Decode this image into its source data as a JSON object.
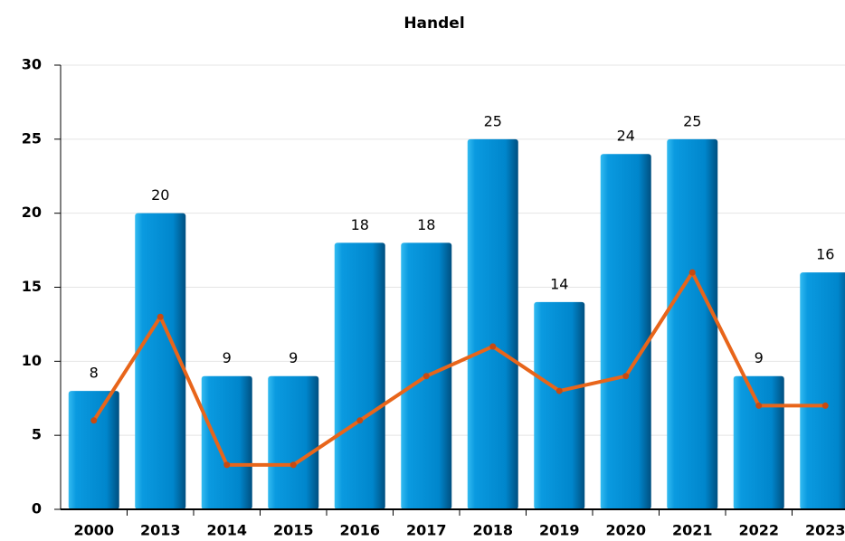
{
  "chart_data": {
    "type": "bar",
    "title": "Handel",
    "categories": [
      "2000",
      "2013",
      "2014",
      "2015",
      "2016",
      "2017",
      "2018",
      "2019",
      "2020",
      "2021",
      "2022",
      "2023"
    ],
    "series": [
      {
        "type": "bar",
        "color": "#0088cc",
        "values": [
          8,
          20,
          9,
          9,
          18,
          18,
          25,
          14,
          24,
          25,
          9,
          16
        ]
      },
      {
        "type": "line",
        "color": "#e8651a",
        "values": [
          6,
          13,
          3,
          3,
          6,
          9,
          11,
          8,
          9,
          16,
          7,
          7
        ]
      }
    ],
    "ylim": [
      0,
      30
    ],
    "yticks": [
      0,
      5,
      10,
      15,
      20,
      25,
      30
    ],
    "grid": true
  }
}
